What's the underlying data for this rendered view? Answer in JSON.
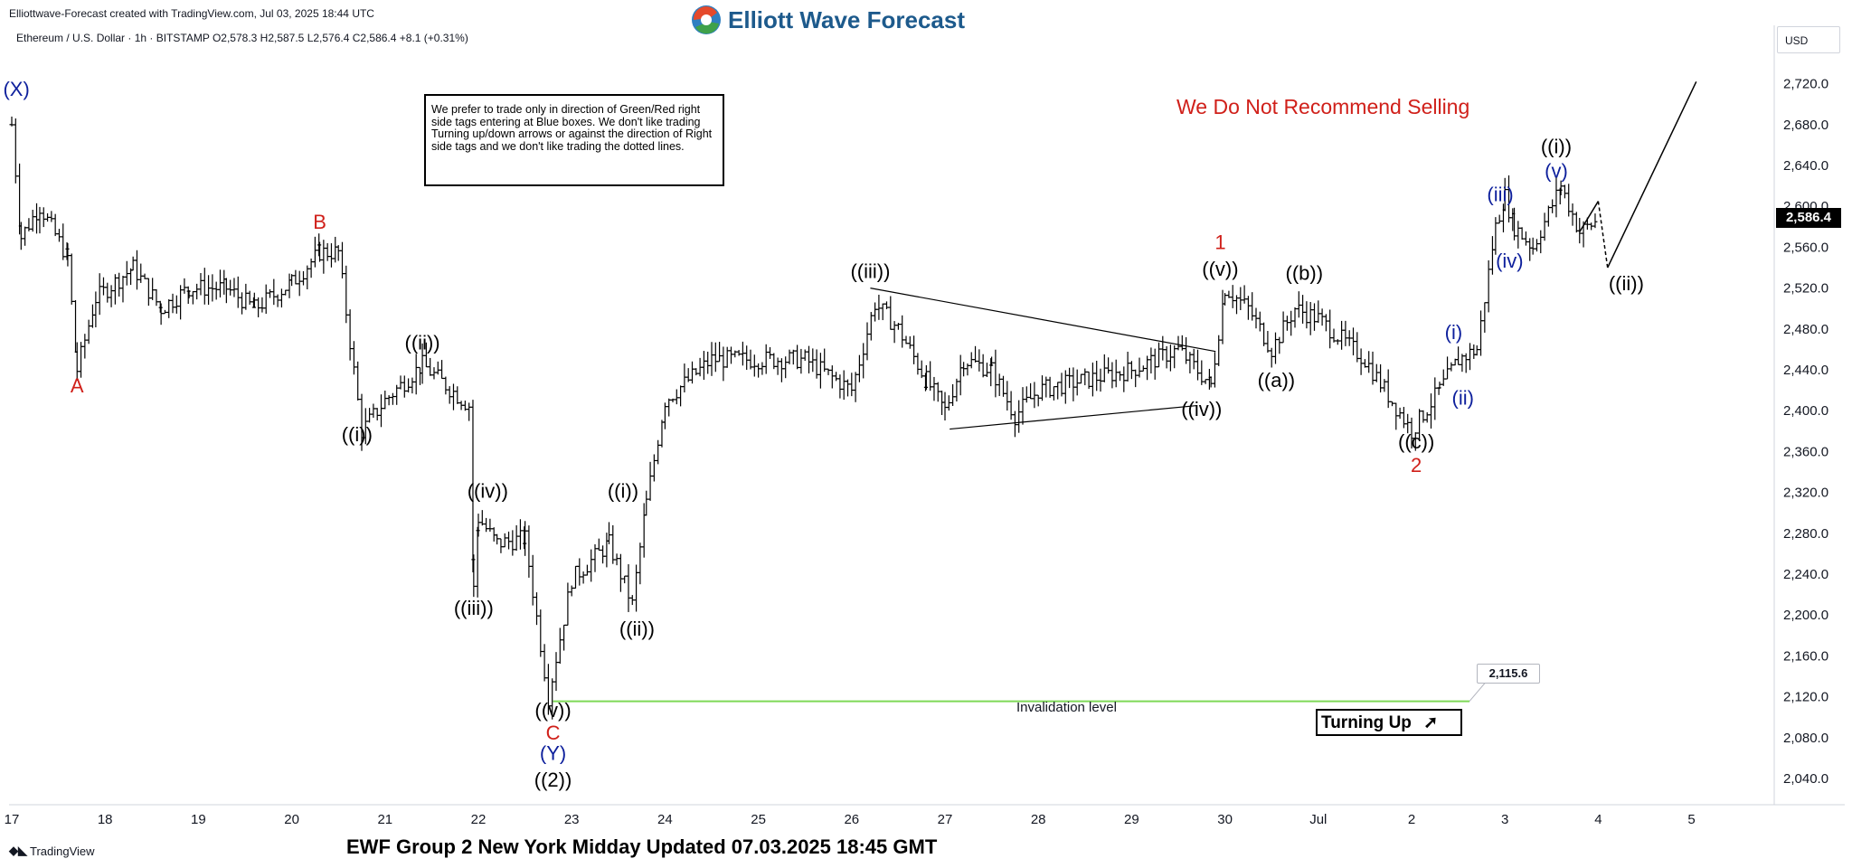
{
  "header": {
    "created_by": "Elliottwave-Forecast created with TradingView.com, Jul 03, 2025 18:44 UTC",
    "symbol_line": "Ethereum / U.S. Dollar · 1h · BITSTAMP  O2,578.3  H2,587.5  L2,576.4  C2,586.4  +8.1 (+0.31%)"
  },
  "brand": {
    "logo_text": "Elliott Wave Forecast",
    "color": "#1d5a8c"
  },
  "note_box": {
    "text": "We prefer to trade only in direction of Green/Red right side tags entering at Blue boxes. We don't like trading Turning up/down arrows or against the direction of Right side tags and we don't like trading the dotted lines."
  },
  "headline": "We Do Not Recommend Selling",
  "footer": "EWF Group 2 New York Midday Updated 07.03.2025 18:45 GMT",
  "tradingview_logo": "TradingView",
  "turning_up": "Turning Up",
  "invalidation": {
    "label": "Invalidation level",
    "price_tag": "2,115.6",
    "value": 2115.6,
    "color": "#7ed957"
  },
  "price_axis": {
    "currency": "USD",
    "last_price_tag": "2,586.4",
    "last_price": 2586.4
  },
  "chart_data": {
    "type": "ohlc-bar",
    "ylim": [
      2000,
      2760
    ],
    "y_ticks": [
      "2,040.0",
      "2,080.0",
      "2,120.0",
      "2,160.0",
      "2,200.0",
      "2,240.0",
      "2,280.0",
      "2,320.0",
      "2,360.0",
      "2,400.0",
      "2,440.0",
      "2,480.0",
      "2,520.0",
      "2,560.0",
      "2,600.0",
      "2,640.0",
      "2,680.0",
      "2,720.0"
    ],
    "x_ticks": [
      "17",
      "18",
      "19",
      "20",
      "21",
      "22",
      "23",
      "24",
      "25",
      "26",
      "27",
      "28",
      "29",
      "30",
      "Jul",
      "2",
      "3",
      "4",
      "5"
    ],
    "price_path": [
      {
        "day": 17.0,
        "price": 2680
      },
      {
        "day": 17.1,
        "price": 2570
      },
      {
        "day": 17.3,
        "price": 2600
      },
      {
        "day": 17.6,
        "price": 2550
      },
      {
        "day": 17.7,
        "price": 2440
      },
      {
        "day": 17.9,
        "price": 2510
      },
      {
        "day": 18.3,
        "price": 2540
      },
      {
        "day": 18.6,
        "price": 2500
      },
      {
        "day": 18.9,
        "price": 2520
      },
      {
        "day": 19.3,
        "price": 2520
      },
      {
        "day": 19.6,
        "price": 2500
      },
      {
        "day": 20.0,
        "price": 2525
      },
      {
        "day": 20.3,
        "price": 2555
      },
      {
        "day": 20.5,
        "price": 2555
      },
      {
        "day": 20.75,
        "price": 2380
      },
      {
        "day": 21.0,
        "price": 2410
      },
      {
        "day": 21.4,
        "price": 2445
      },
      {
        "day": 21.9,
        "price": 2405
      },
      {
        "day": 21.95,
        "price": 2225
      },
      {
        "day": 22.0,
        "price": 2295
      },
      {
        "day": 22.2,
        "price": 2270
      },
      {
        "day": 22.5,
        "price": 2275
      },
      {
        "day": 22.75,
        "price": 2120
      },
      {
        "day": 23.0,
        "price": 2235
      },
      {
        "day": 23.4,
        "price": 2270
      },
      {
        "day": 23.65,
        "price": 2210
      },
      {
        "day": 23.8,
        "price": 2310
      },
      {
        "day": 24.0,
        "price": 2410
      },
      {
        "day": 24.5,
        "price": 2450
      },
      {
        "day": 25.0,
        "price": 2450
      },
      {
        "day": 25.5,
        "price": 2450
      },
      {
        "day": 26.0,
        "price": 2420
      },
      {
        "day": 26.25,
        "price": 2505
      },
      {
        "day": 26.5,
        "price": 2480
      },
      {
        "day": 26.8,
        "price": 2430
      },
      {
        "day": 27.0,
        "price": 2400
      },
      {
        "day": 27.2,
        "price": 2450
      },
      {
        "day": 27.5,
        "price": 2440
      },
      {
        "day": 27.75,
        "price": 2395
      },
      {
        "day": 28.0,
        "price": 2420
      },
      {
        "day": 28.5,
        "price": 2430
      },
      {
        "day": 29.0,
        "price": 2440
      },
      {
        "day": 29.5,
        "price": 2460
      },
      {
        "day": 29.85,
        "price": 2425
      },
      {
        "day": 30.0,
        "price": 2520
      },
      {
        "day": 30.25,
        "price": 2500
      },
      {
        "day": 30.5,
        "price": 2460
      },
      {
        "day": 30.75,
        "price": 2500
      },
      {
        "day": 31.0,
        "price": 2490
      },
      {
        "day": 31.5,
        "price": 2450
      },
      {
        "day": 32.0,
        "price": 2380
      },
      {
        "day": 32.3,
        "price": 2420
      },
      {
        "day": 32.5,
        "price": 2450
      },
      {
        "day": 32.7,
        "price": 2460
      },
      {
        "day": 32.9,
        "price": 2580
      },
      {
        "day": 33.0,
        "price": 2610
      },
      {
        "day": 33.1,
        "price": 2580
      },
      {
        "day": 33.3,
        "price": 2560
      },
      {
        "day": 33.6,
        "price": 2620
      },
      {
        "day": 33.8,
        "price": 2575
      },
      {
        "day": 34.0,
        "price": 2586.4
      }
    ],
    "wave_labels": [
      {
        "text": "((i))",
        "day": 20.7,
        "price": 2370,
        "color": "#000000"
      },
      {
        "text": "((ii))",
        "day": 21.4,
        "price": 2460,
        "color": "#000000"
      },
      {
        "text": "((iii))",
        "day": 21.95,
        "price": 2200,
        "color": "#000000"
      },
      {
        "text": "((iv))",
        "day": 22.1,
        "price": 2315,
        "color": "#000000"
      },
      {
        "text": "((v))",
        "day": 22.8,
        "price": 2100,
        "color": "#000000"
      },
      {
        "text": "C",
        "day": 22.8,
        "price": 2078,
        "color": "#d0201a"
      },
      {
        "text": "(Y)",
        "day": 22.8,
        "price": 2058,
        "color": "#0d1f9c"
      },
      {
        "text": "((2))",
        "day": 22.8,
        "price": 2032,
        "color": "#000000"
      },
      {
        "text": "A",
        "day": 17.7,
        "price": 2418,
        "color": "#d0201a"
      },
      {
        "text": "B",
        "day": 20.3,
        "price": 2578,
        "color": "#d0201a"
      },
      {
        "text": "((i))",
        "day": 23.55,
        "price": 2315,
        "color": "#000000"
      },
      {
        "text": "((ii))",
        "day": 23.7,
        "price": 2180,
        "color": "#000000"
      },
      {
        "text": "((iii))",
        "day": 26.2,
        "price": 2530,
        "color": "#000000"
      },
      {
        "text": "((iv))",
        "day": 29.75,
        "price": 2395,
        "color": "#000000"
      },
      {
        "text": "((v))",
        "day": 29.95,
        "price": 2532,
        "color": "#000000"
      },
      {
        "text": "1",
        "day": 29.95,
        "price": 2558,
        "color": "#d0201a"
      },
      {
        "text": "((a))",
        "day": 30.55,
        "price": 2423,
        "color": "#000000"
      },
      {
        "text": "((b))",
        "day": 30.85,
        "price": 2528,
        "color": "#000000"
      },
      {
        "text": "((c))",
        "day": 32.05,
        "price": 2363,
        "color": "#000000"
      },
      {
        "text": "2",
        "day": 32.05,
        "price": 2340,
        "color": "#d0201a"
      },
      {
        "text": "(i)",
        "day": 32.45,
        "price": 2470,
        "color": "#0d1f9c"
      },
      {
        "text": "(ii)",
        "day": 32.55,
        "price": 2406,
        "color": "#0d1f9c"
      },
      {
        "text": "(iii)",
        "day": 32.95,
        "price": 2605,
        "color": "#0d1f9c"
      },
      {
        "text": "(iv)",
        "day": 33.05,
        "price": 2540,
        "color": "#0d1f9c"
      },
      {
        "text": "(v)",
        "day": 33.55,
        "price": 2628,
        "color": "#0d1f9c"
      },
      {
        "text": "((i))",
        "day": 33.55,
        "price": 2652,
        "color": "#000000"
      },
      {
        "text": "((ii))",
        "day": 34.3,
        "price": 2518,
        "color": "#000000"
      },
      {
        "text": "(X)",
        "day": 17.05,
        "price": 2708,
        "color": "#0d1f9c"
      }
    ],
    "triangle": {
      "upper": [
        {
          "day": 26.2,
          "price": 2520
        },
        {
          "day": 29.9,
          "price": 2458
        }
      ],
      "lower": [
        {
          "day": 27.05,
          "price": 2382
        },
        {
          "day": 29.7,
          "price": 2405
        }
      ]
    },
    "projection": [
      {
        "day": 33.8,
        "price": 2575,
        "style": "solid"
      },
      {
        "day": 34.0,
        "price": 2605,
        "style": "dashed"
      },
      {
        "day": 34.1,
        "price": 2540,
        "style": "solid"
      },
      {
        "day": 35.05,
        "price": 2722,
        "style": "end"
      }
    ]
  }
}
